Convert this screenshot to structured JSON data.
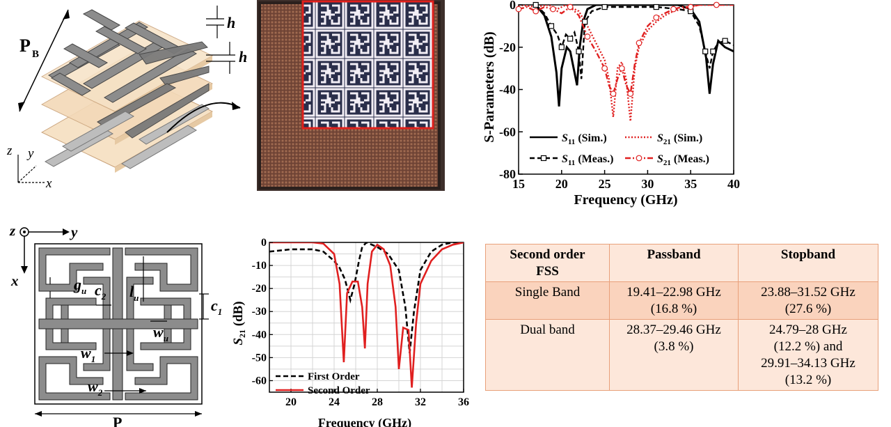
{
  "figure_top_left": {
    "labels": {
      "period": "P",
      "period_sub": "B",
      "thickness": "h",
      "thickness2": "h",
      "axis_z": "z",
      "axis_y": "y",
      "axis_x": "x"
    }
  },
  "figure_bottom_left": {
    "labels": {
      "axis_z": "z",
      "axis_y": "y",
      "axis_x": "x",
      "gu": "g",
      "gu_sub": "u",
      "c2": "c",
      "c2_sub": "2",
      "lu": "l",
      "lu_sub": "u",
      "c1": "c",
      "c1_sub": "1",
      "wu": "w",
      "wu_sub": "u",
      "w1": "w",
      "w1_sub": "1",
      "w2": "w",
      "w2_sub": "2",
      "period": "P"
    }
  },
  "colors": {
    "metal": "#8c8c8c",
    "metal_dark": "#555555",
    "substrate": "#f3d9b8",
    "photo_copper": "#8b5a44",
    "photo_frame": "#4b3a35",
    "inset_border": "#e0201c",
    "sim_s21": "#e02020",
    "table_border": "#e8a07a",
    "table_header": "#fde7da",
    "table_row1": "#fad3bd",
    "table_row2": "#fde7da"
  },
  "chart_data": [
    {
      "type": "line",
      "title": "",
      "xlabel": "Frequency (GHz)",
      "ylabel": "S-Parameters (dB)",
      "xlim": [
        15,
        40
      ],
      "ylim": [
        -80,
        0
      ],
      "x_ticks": [
        "15",
        "20",
        "25",
        "30",
        "35",
        "40"
      ],
      "y_ticks": [
        "0",
        "-20",
        "-40",
        "-60",
        "-80"
      ],
      "grid": false,
      "legend_placement": "bottom",
      "series": [
        {
          "name": "S11 (Sim.)",
          "name_main": "S",
          "name_sub": "11",
          "name_suffix": " (Sim.)",
          "color": "#000000",
          "style": "solid",
          "marker": "none",
          "x": [
            17.0,
            18.0,
            18.8,
            19.4,
            19.7,
            20.0,
            20.6,
            21.0,
            21.4,
            21.8,
            22.1,
            22.5,
            23.0,
            24.0,
            27.0,
            31.0,
            33.5,
            35.0,
            36.0,
            36.8,
            37.2,
            37.6,
            38.2,
            39.0,
            40.0
          ],
          "y": [
            0,
            -5,
            -15,
            -32,
            -48,
            -30,
            -20,
            -22,
            -30,
            -38,
            -20,
            -8,
            -2,
            0,
            0,
            0,
            0,
            -2,
            -8,
            -25,
            -42,
            -28,
            -17,
            -20,
            -22
          ]
        },
        {
          "name": "S21 (Sim.)",
          "name_main": "S",
          "name_sub": "21",
          "name_suffix": " (Sim.)",
          "color": "#e02020",
          "style": "dotted",
          "marker": "none",
          "x": [
            15.0,
            17.0,
            18.5,
            19.5,
            20.5,
            22.0,
            23.0,
            24.0,
            25.0,
            25.5,
            26.0,
            26.5,
            27.0,
            27.5,
            28.0,
            28.5,
            29.0,
            30.0,
            31.0,
            32.0,
            33.0,
            34.0,
            35.0,
            36.0,
            38.0,
            40.0
          ],
          "y": [
            0,
            -1,
            0,
            -2,
            0,
            -3,
            -10,
            -18,
            -26,
            -35,
            -53,
            -30,
            -27,
            -35,
            -55,
            -30,
            -20,
            -12,
            -8,
            -5,
            -3,
            -2,
            -1,
            0,
            0,
            0
          ]
        },
        {
          "name": "S11 (Meas.)",
          "name_main": "S",
          "name_sub": "11",
          "name_suffix": " (Meas.)",
          "color": "#000000",
          "style": "dashed",
          "marker": "square",
          "x": [
            17.0,
            18.0,
            18.8,
            19.5,
            20.0,
            20.5,
            21.0,
            21.5,
            22.0,
            22.3,
            22.7,
            23.5,
            25.0,
            28.0,
            31.0,
            33.5,
            35.0,
            36.0,
            36.7,
            37.2,
            37.6,
            38.2,
            39.0,
            40.0
          ],
          "y": [
            0,
            -4,
            -10,
            -14,
            -20,
            -14,
            -16,
            -13,
            -22,
            -35,
            -8,
            -3,
            -1,
            -1,
            -1,
            -2,
            -3,
            -10,
            -22,
            -30,
            -22,
            -18,
            -17,
            -19
          ]
        },
        {
          "name": "S21 (Meas.)",
          "name_main": "S",
          "name_sub": "21",
          "name_suffix": " (Meas.)",
          "color": "#e02020",
          "style": "dashdot",
          "marker": "circle",
          "x": [
            15.0,
            16.0,
            17.0,
            18.0,
            19.0,
            20.0,
            21.0,
            22.0,
            23.0,
            24.0,
            25.0,
            25.5,
            26.0,
            26.5,
            27.0,
            27.5,
            28.0,
            28.5,
            29.0,
            30.0,
            31.0,
            32.0,
            33.0,
            34.0,
            35.0,
            36.0,
            38.0,
            40.0
          ],
          "y": [
            -2,
            -1,
            -3,
            -1,
            -2,
            -4,
            -1,
            -5,
            -15,
            -22,
            -30,
            -38,
            -42,
            -35,
            -30,
            -38,
            -42,
            -28,
            -18,
            -10,
            -6,
            -4,
            -2,
            -1,
            -1,
            0,
            0,
            0
          ]
        }
      ]
    },
    {
      "type": "line",
      "title": "",
      "xlabel": "Frequency (GHz)",
      "ylabel": "S21 (dB)",
      "ylabel_main": "S",
      "ylabel_sub": "21",
      "ylabel_suffix": " (dB)",
      "xlim": [
        18,
        36
      ],
      "ylim": [
        -65,
        0
      ],
      "x_ticks": [
        "20",
        "24",
        "28",
        "32",
        "36"
      ],
      "y_ticks": [
        "0",
        "-10",
        "-20",
        "-30",
        "-40",
        "-50",
        "-60"
      ],
      "grid": true,
      "legend_placement": "bottom-left",
      "series": [
        {
          "name": "First Order",
          "color": "#000000",
          "style": "dashed",
          "x": [
            18.0,
            19.0,
            20.0,
            21.0,
            22.0,
            23.0,
            24.0,
            24.5,
            25.0,
            25.5,
            25.9,
            26.3,
            26.6,
            27.0,
            28.0,
            29.0,
            30.0,
            30.6,
            31.0,
            31.4,
            32.0,
            33.0,
            34.0,
            35.0,
            36.0
          ],
          "y": [
            -4,
            -3.5,
            -3,
            -3,
            -3,
            -4,
            -8,
            -11,
            -16,
            -25,
            -18,
            -8,
            -2,
            0,
            -2,
            -5,
            -12,
            -28,
            -48,
            -30,
            -12,
            -4,
            -1,
            0,
            0
          ]
        },
        {
          "name": "Second Order",
          "color": "#e02020",
          "style": "solid",
          "x": [
            18.0,
            19.0,
            20.0,
            21.0,
            22.0,
            23.0,
            24.0,
            24.5,
            24.9,
            25.2,
            25.7,
            26.2,
            26.6,
            26.85,
            27.1,
            27.5,
            28.0,
            28.6,
            29.2,
            29.7,
            30.0,
            30.4,
            30.9,
            31.2,
            31.6,
            32.0,
            33.0,
            34.0,
            35.0,
            36.0
          ],
          "y": [
            0,
            0,
            0,
            0,
            0,
            -0.5,
            -5,
            -18,
            -52,
            -22,
            -17,
            -17,
            -28,
            -46,
            -18,
            -4,
            -1,
            -3,
            -10,
            -28,
            -55,
            -37,
            -38,
            -63,
            -35,
            -18,
            -8,
            -3,
            -1,
            0
          ]
        }
      ]
    }
  ],
  "table": {
    "headers": [
      "Second order FSS",
      "Passband",
      "Stopband"
    ],
    "header_first_lines": [
      "Second order",
      "FSS"
    ],
    "rows": [
      {
        "name": "Single Band",
        "passband_lines": [
          "19.41–22.98 GHz",
          "(16.8 %)"
        ],
        "stopband_lines": [
          "23.88–31.52 GHz",
          "(27.6 %)"
        ]
      },
      {
        "name": "Dual band",
        "passband_lines": [
          "28.37–29.46 GHz",
          "(3.8 %)"
        ],
        "stopband_lines": [
          "24.79–28 GHz",
          "(12.2 %) and",
          "29.91–34.13 GHz",
          "(13.2 %)"
        ]
      }
    ]
  }
}
